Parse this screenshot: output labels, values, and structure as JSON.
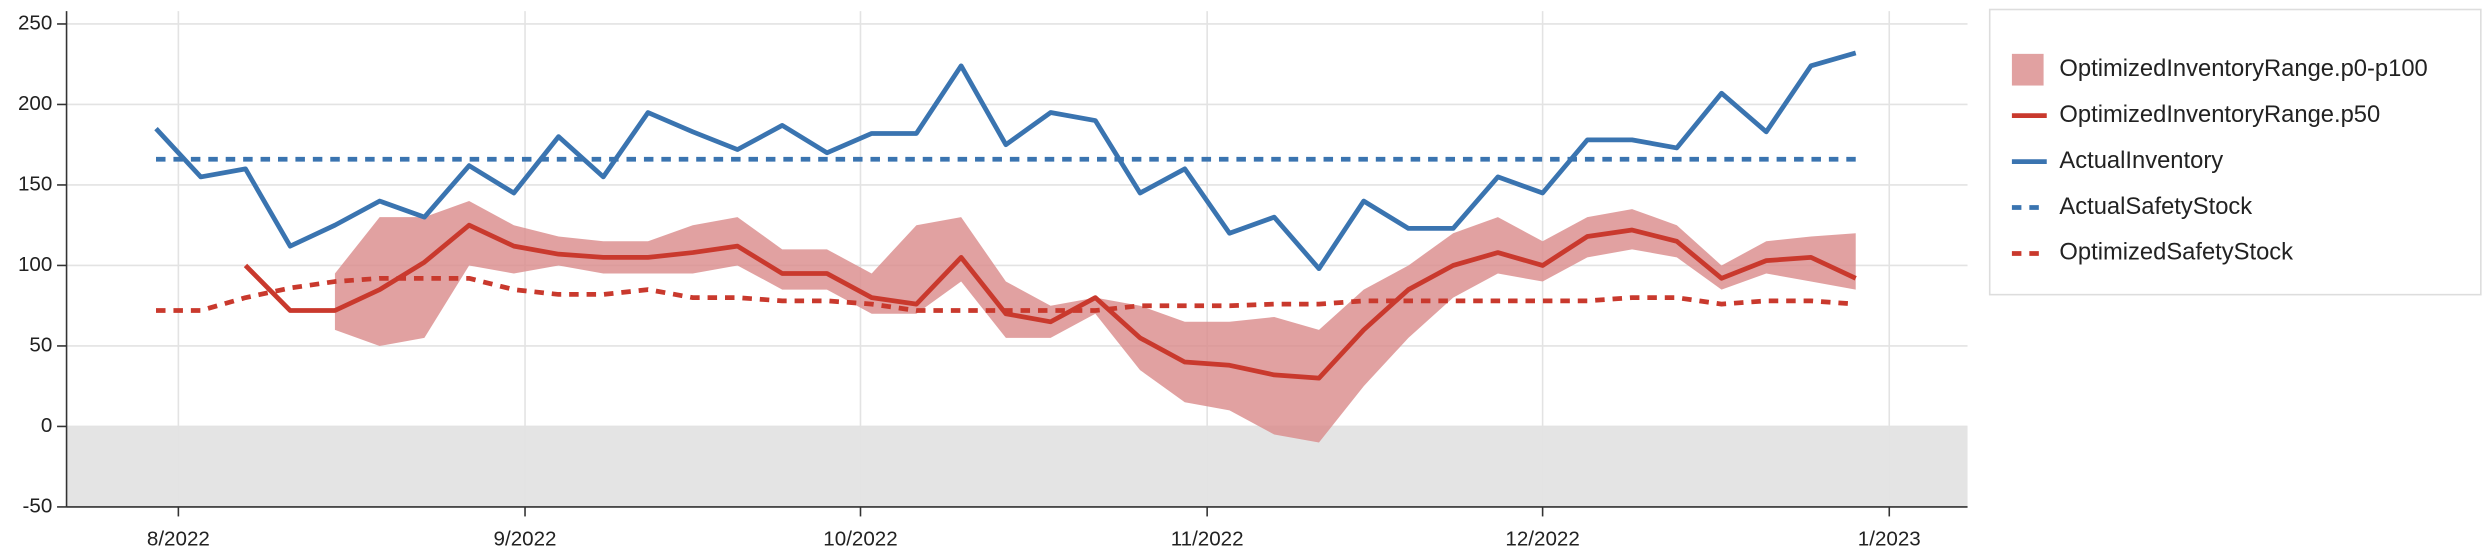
{
  "chart_data": {
    "type": "line",
    "x": [
      "2022-07-30",
      "2022-08-03",
      "2022-08-07",
      "2022-08-11",
      "2022-08-15",
      "2022-08-19",
      "2022-08-23",
      "2022-08-27",
      "2022-08-31",
      "2022-09-04",
      "2022-09-08",
      "2022-09-12",
      "2022-09-16",
      "2022-09-20",
      "2022-09-24",
      "2022-09-28",
      "2022-10-02",
      "2022-10-06",
      "2022-10-10",
      "2022-10-14",
      "2022-10-18",
      "2022-10-22",
      "2022-10-26",
      "2022-10-30",
      "2022-11-03",
      "2022-11-07",
      "2022-11-11",
      "2022-11-15",
      "2022-11-19",
      "2022-11-23",
      "2022-11-27",
      "2022-12-01",
      "2022-12-05",
      "2022-12-09",
      "2022-12-13",
      "2022-12-17",
      "2022-12-21",
      "2022-12-25",
      "2022-12-29"
    ],
    "xlim": [
      "2022-07-22",
      "2023-01-08"
    ],
    "xticks": [
      {
        "value": "2022-08-01",
        "label": "8/2022"
      },
      {
        "value": "2022-09-01",
        "label": "9/2022"
      },
      {
        "value": "2022-10-01",
        "label": "10/2022"
      },
      {
        "value": "2022-11-01",
        "label": "11/2022"
      },
      {
        "value": "2022-12-01",
        "label": "12/2022"
      },
      {
        "value": "2023-01-01",
        "label": "1/2023"
      }
    ],
    "ylim": [
      -50,
      258
    ],
    "yticks": [
      -50,
      0,
      50,
      100,
      150,
      200,
      250
    ],
    "grid": true,
    "negative_shading": true,
    "legend": "right",
    "series": [
      {
        "name": "OptimizedInventoryRange.p0-p100",
        "kind": "band",
        "color": "#d9898a",
        "low": [
          null,
          null,
          null,
          null,
          60,
          50,
          55,
          100,
          95,
          100,
          95,
          95,
          95,
          100,
          85,
          85,
          70,
          70,
          90,
          55,
          55,
          70,
          35,
          15,
          10,
          -5,
          -10,
          25,
          55,
          80,
          95,
          90,
          105,
          110,
          105,
          85,
          95,
          90,
          85
        ],
        "high": [
          null,
          null,
          null,
          null,
          95,
          130,
          130,
          140,
          125,
          118,
          115,
          115,
          125,
          130,
          110,
          110,
          95,
          125,
          130,
          90,
          75,
          80,
          75,
          65,
          65,
          68,
          60,
          85,
          100,
          120,
          130,
          115,
          130,
          135,
          125,
          100,
          115,
          118,
          120
        ]
      },
      {
        "name": "OptimizedInventoryRange.p50",
        "color": "#c9392d",
        "dash": false,
        "values": [
          null,
          null,
          100,
          72,
          72,
          85,
          102,
          125,
          112,
          107,
          105,
          105,
          108,
          112,
          95,
          95,
          80,
          76,
          105,
          70,
          65,
          80,
          55,
          40,
          38,
          32,
          30,
          60,
          85,
          100,
          108,
          100,
          118,
          122,
          115,
          92,
          103,
          105,
          92
        ]
      },
      {
        "name": "ActualInventory",
        "color": "#3a74b0",
        "dash": false,
        "values": [
          185,
          155,
          160,
          112,
          125,
          140,
          130,
          162,
          145,
          180,
          155,
          195,
          183,
          172,
          187,
          170,
          182,
          182,
          224,
          175,
          195,
          190,
          145,
          160,
          120,
          130,
          98,
          140,
          123,
          123,
          155,
          145,
          178,
          178,
          173,
          207,
          183,
          224,
          232
        ]
      },
      {
        "name": "ActualSafetyStock",
        "color": "#3a74b0",
        "dash": true,
        "values": [
          166,
          166,
          166,
          166,
          166,
          166,
          166,
          166,
          166,
          166,
          166,
          166,
          166,
          166,
          166,
          166,
          166,
          166,
          166,
          166,
          166,
          166,
          166,
          166,
          166,
          166,
          166,
          166,
          166,
          166,
          166,
          166,
          166,
          166,
          166,
          166,
          166,
          166,
          166
        ]
      },
      {
        "name": "OptimizedSafetyStock",
        "color": "#c9392d",
        "dash": true,
        "values": [
          72,
          72,
          80,
          86,
          90,
          92,
          92,
          92,
          85,
          82,
          82,
          85,
          80,
          80,
          78,
          78,
          76,
          72,
          72,
          72,
          72,
          72,
          75,
          75,
          75,
          76,
          76,
          78,
          78,
          78,
          78,
          78,
          78,
          80,
          80,
          76,
          78,
          78,
          76
        ]
      }
    ]
  }
}
